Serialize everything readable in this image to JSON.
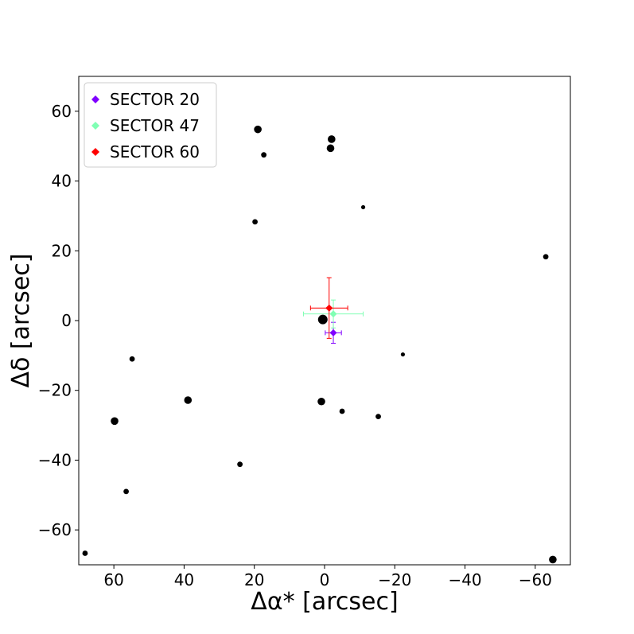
{
  "chart_data": {
    "type": "scatter",
    "title": "",
    "xlabel": "Δα* [arcsec]",
    "ylabel": "Δδ [arcsec]",
    "xlim": [
      70,
      -70
    ],
    "ylim": [
      -70,
      70
    ],
    "x_ticks": [
      60,
      40,
      20,
      0,
      -20,
      -40,
      -60
    ],
    "y_ticks": [
      60,
      40,
      20,
      0,
      -20,
      -40,
      -60
    ],
    "x_tick_labels": [
      "60",
      "40",
      "20",
      "0",
      "−20",
      "−40",
      "−60"
    ],
    "y_tick_labels": [
      "60",
      "40",
      "20",
      "0",
      "−20",
      "−40",
      "−60"
    ],
    "grid": false,
    "legend_position": "top-left",
    "stars": {
      "color": "#000000",
      "points": [
        {
          "x": 0.5,
          "y": 0.3,
          "size": "large"
        },
        {
          "x": 19,
          "y": 54.8,
          "size": "medium"
        },
        {
          "x": 17.3,
          "y": 47.5,
          "size": "small"
        },
        {
          "x": -2,
          "y": 52,
          "size": "medium"
        },
        {
          "x": -1.7,
          "y": 49.4,
          "size": "medium"
        },
        {
          "x": -11,
          "y": 32.5,
          "size": "tiny"
        },
        {
          "x": 19.8,
          "y": 28.3,
          "size": "small"
        },
        {
          "x": -63,
          "y": 18.3,
          "size": "small"
        },
        {
          "x": -22.3,
          "y": -9.7,
          "size": "tiny"
        },
        {
          "x": 54.8,
          "y": -11,
          "size": "small"
        },
        {
          "x": 38.9,
          "y": -22.8,
          "size": "medium"
        },
        {
          "x": 0.9,
          "y": -23.2,
          "size": "medium"
        },
        {
          "x": -5,
          "y": -26,
          "size": "small"
        },
        {
          "x": -15.3,
          "y": -27.5,
          "size": "small"
        },
        {
          "x": 59.8,
          "y": -28.8,
          "size": "medium"
        },
        {
          "x": 24.1,
          "y": -41.2,
          "size": "small"
        },
        {
          "x": 56.5,
          "y": -49,
          "size": "small"
        },
        {
          "x": 68.2,
          "y": -66.7,
          "size": "small"
        },
        {
          "x": -65,
          "y": -68.5,
          "size": "medium"
        }
      ]
    },
    "series": [
      {
        "name": "SECTOR 20",
        "color": "#8000ff",
        "x": -2.5,
        "y": -3.5,
        "xerr": 2.3,
        "yerr": 3.0
      },
      {
        "name": "SECTOR 47",
        "color": "#80ffb4",
        "x": -2.5,
        "y": 1.9,
        "xerr": 8.5,
        "yerr": 4.0
      },
      {
        "name": "SECTOR 60",
        "color": "#ff0000",
        "x": -1.3,
        "y": 3.6,
        "xerr": 5.3,
        "yerr": 8.7
      }
    ]
  }
}
